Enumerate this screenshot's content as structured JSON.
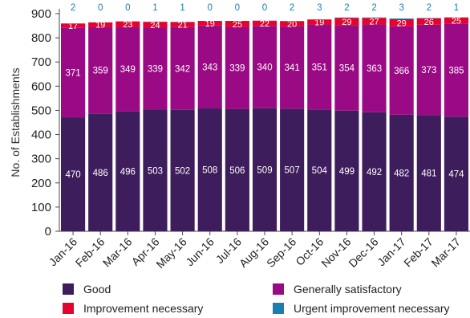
{
  "chart_data": {
    "type": "bar",
    "stacked": true,
    "title": "",
    "xlabel": "",
    "ylabel": "No. of Establishments",
    "ylim": [
      0,
      900
    ],
    "yticks": [
      0,
      100,
      200,
      300,
      400,
      500,
      600,
      700,
      800,
      900
    ],
    "grid": false,
    "legend_position": "bottom",
    "categories": [
      "Jan-16",
      "Feb-16",
      "Mar-16",
      "Apr-16",
      "May-16",
      "Jun-16",
      "Jul-16",
      "Aug-16",
      "Sep-16",
      "Oct-16",
      "Nov-16",
      "Dec-16",
      "Jan-17",
      "Feb-17",
      "Mar-17"
    ],
    "series": [
      {
        "name": "Good",
        "color": "#3d1d5c",
        "label_color": "#ffffff",
        "values": [
          470,
          486,
          496,
          503,
          502,
          508,
          506,
          509,
          507,
          504,
          499,
          492,
          482,
          481,
          474
        ]
      },
      {
        "name": "Generally satisfactory",
        "color": "#9b0a85",
        "label_color": "#ffffff",
        "values": [
          371,
          359,
          349,
          339,
          342,
          343,
          339,
          340,
          341,
          351,
          354,
          363,
          366,
          373,
          385
        ]
      },
      {
        "name": "Improvement necessary",
        "color": "#e4032e",
        "label_color": "#ffffff",
        "values": [
          17,
          19,
          23,
          24,
          21,
          19,
          25,
          22,
          20,
          19,
          29,
          27,
          29,
          26,
          25
        ]
      },
      {
        "name": "Urgent improvement necessary",
        "color": "#1a7fb0",
        "label_color": "#1a7fb0",
        "values": [
          2,
          0,
          0,
          1,
          1,
          0,
          0,
          0,
          2,
          3,
          2,
          2,
          3,
          2,
          1
        ]
      }
    ]
  }
}
